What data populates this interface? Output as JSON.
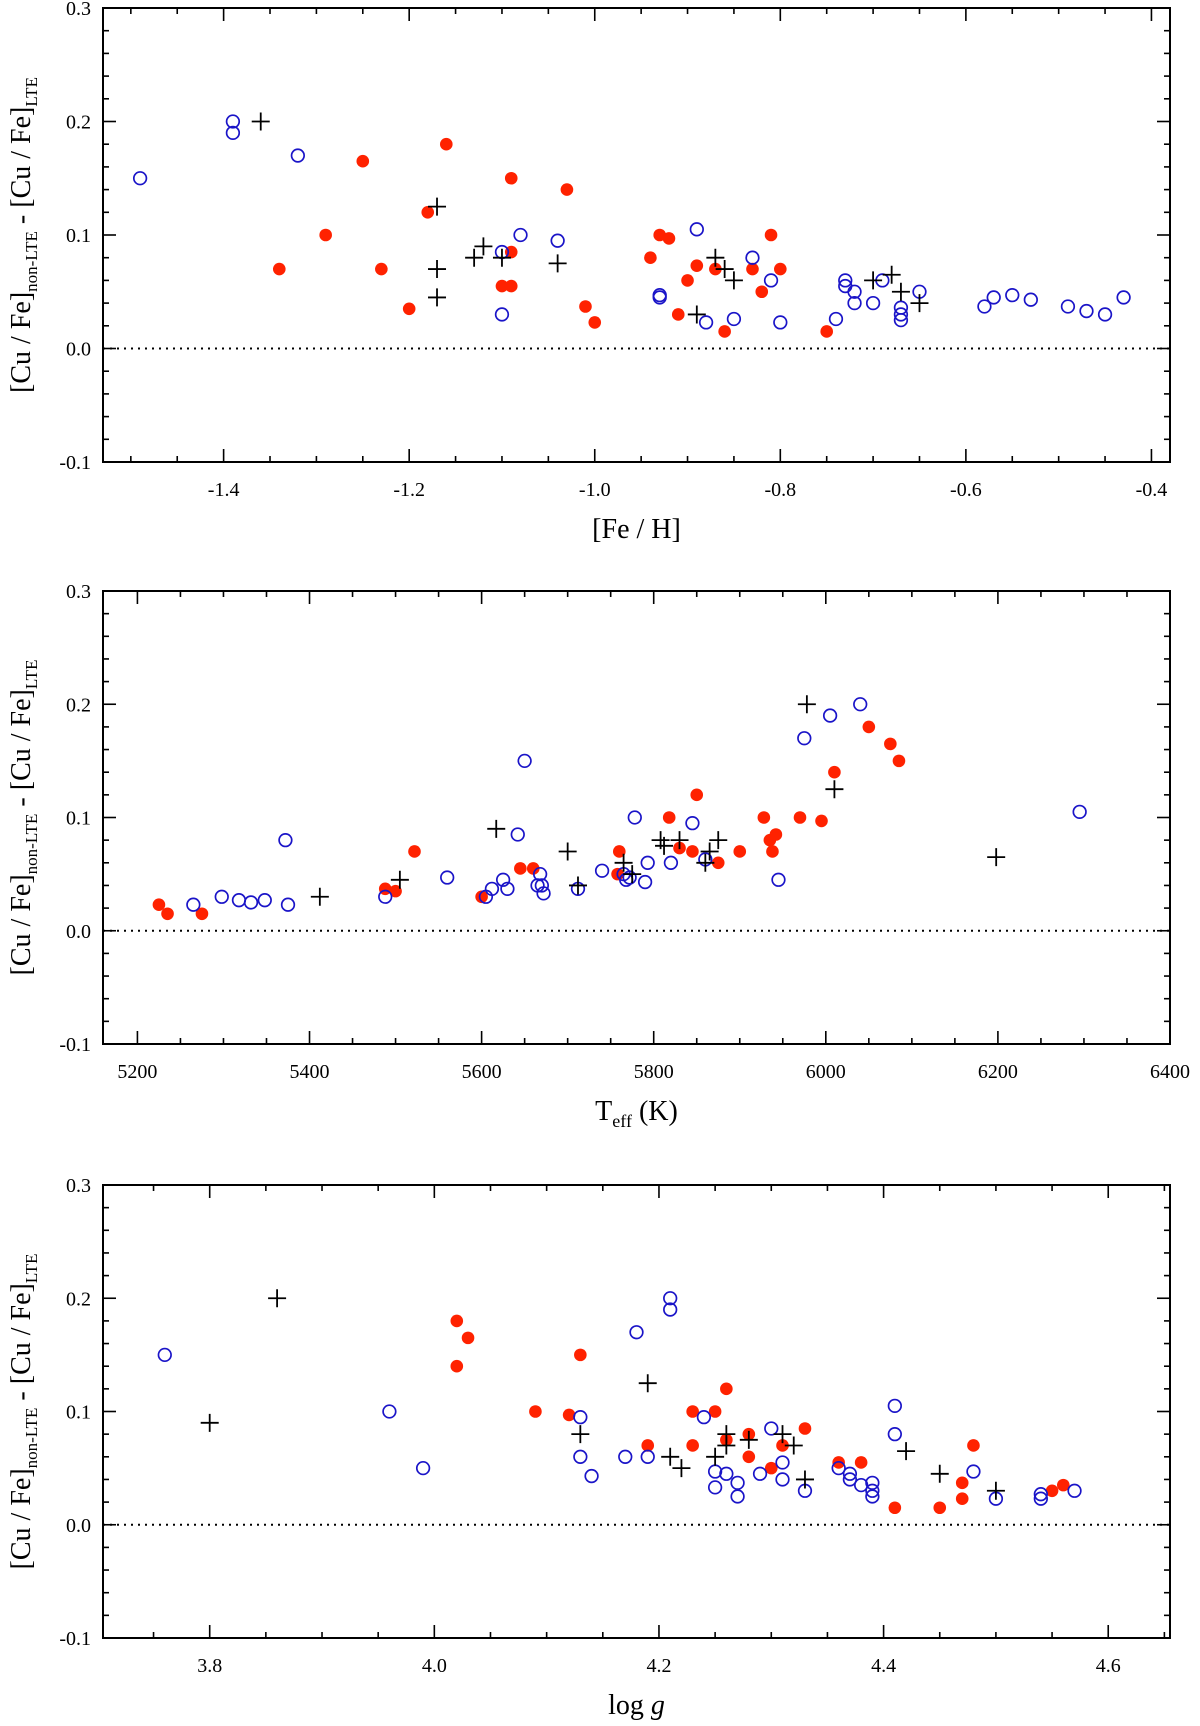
{
  "colors": {
    "filled": "#ff2200",
    "open": "#1a14c8",
    "cross": "#000000",
    "frame": "#000000"
  },
  "chart_data": [
    {
      "type": "scatter",
      "xlabel": "[Fe / H]",
      "ylabel": {
        "main1": "[Cu / Fe]",
        "sub1": "non-LTE",
        "mid": " - [Cu / Fe]",
        "sub2": "LTE"
      },
      "xlim": [
        -1.53,
        -0.38
      ],
      "ylim": [
        -0.1,
        0.3
      ],
      "xticks": [
        -1.4,
        -1.2,
        -1.0,
        -0.8,
        -0.6,
        -0.4
      ],
      "xtick_labels": [
        "-1.4",
        "-1.2",
        "-1.0",
        "-0.8",
        "-0.6",
        "-0.4"
      ],
      "xminor": 0.05,
      "yticks": [
        -0.1,
        0.0,
        0.1,
        0.2,
        0.3
      ],
      "ytick_labels": [
        "-0.1",
        "0.0",
        "0.1",
        "0.2",
        "0.3"
      ],
      "yminor": 0.02,
      "zero_line": true,
      "series": [
        {
          "marker": "filled",
          "points": [
            [
              -1.34,
              0.07
            ],
            [
              -1.29,
              0.1
            ],
            [
              -1.25,
              0.165
            ],
            [
              -1.23,
              0.07
            ],
            [
              -1.2,
              0.035
            ],
            [
              -1.18,
              0.12
            ],
            [
              -1.16,
              0.18
            ],
            [
              -1.1,
              0.055
            ],
            [
              -1.09,
              0.15
            ],
            [
              -1.09,
              0.085
            ],
            [
              -1.09,
              0.055
            ],
            [
              -1.03,
              0.14
            ],
            [
              -1.01,
              0.037
            ],
            [
              -1.0,
              0.023
            ],
            [
              -0.94,
              0.08
            ],
            [
              -0.93,
              0.1
            ],
            [
              -0.92,
              0.097
            ],
            [
              -0.91,
              0.03
            ],
            [
              -0.9,
              0.06
            ],
            [
              -0.89,
              0.073
            ],
            [
              -0.87,
              0.07
            ],
            [
              -0.86,
              0.015
            ],
            [
              -0.83,
              0.07
            ],
            [
              -0.82,
              0.05
            ],
            [
              -0.81,
              0.1
            ],
            [
              -0.8,
              0.07
            ],
            [
              -0.75,
              0.015
            ]
          ]
        },
        {
          "marker": "open",
          "points": [
            [
              -1.49,
              0.15
            ],
            [
              -1.39,
              0.2
            ],
            [
              -1.39,
              0.19
            ],
            [
              -1.32,
              0.17
            ],
            [
              -1.1,
              0.085
            ],
            [
              -1.1,
              0.03
            ],
            [
              -1.08,
              0.1
            ],
            [
              -1.04,
              0.095
            ],
            [
              -0.93,
              0.047
            ],
            [
              -0.93,
              0.045
            ],
            [
              -0.89,
              0.105
            ],
            [
              -0.88,
              0.023
            ],
            [
              -0.85,
              0.026
            ],
            [
              -0.83,
              0.08
            ],
            [
              -0.81,
              0.06
            ],
            [
              -0.8,
              0.023
            ],
            [
              -0.74,
              0.026
            ],
            [
              -0.73,
              0.06
            ],
            [
              -0.73,
              0.055
            ],
            [
              -0.72,
              0.05
            ],
            [
              -0.72,
              0.04
            ],
            [
              -0.7,
              0.04
            ],
            [
              -0.69,
              0.06
            ],
            [
              -0.67,
              0.036
            ],
            [
              -0.67,
              0.03
            ],
            [
              -0.67,
              0.025
            ],
            [
              -0.65,
              0.05
            ],
            [
              -0.58,
              0.037
            ],
            [
              -0.57,
              0.045
            ],
            [
              -0.55,
              0.047
            ],
            [
              -0.53,
              0.043
            ],
            [
              -0.49,
              0.037
            ],
            [
              -0.47,
              0.033
            ],
            [
              -0.45,
              0.03
            ],
            [
              -0.43,
              0.045
            ]
          ]
        },
        {
          "marker": "cross",
          "points": [
            [
              -1.36,
              0.2
            ],
            [
              -1.17,
              0.125
            ],
            [
              -1.17,
              0.07
            ],
            [
              -1.17,
              0.045
            ],
            [
              -1.13,
              0.08
            ],
            [
              -1.12,
              0.09
            ],
            [
              -1.1,
              0.08
            ],
            [
              -1.04,
              0.075
            ],
            [
              -0.89,
              0.03
            ],
            [
              -0.87,
              0.08
            ],
            [
              -0.86,
              0.07
            ],
            [
              -0.85,
              0.06
            ],
            [
              -0.7,
              0.06
            ],
            [
              -0.68,
              0.065
            ],
            [
              -0.67,
              0.05
            ],
            [
              -0.65,
              0.04
            ]
          ]
        }
      ]
    },
    {
      "type": "scatter",
      "xlabel": {
        "main": "T",
        "sub": "eff",
        "unit": " (K)"
      },
      "ylabel": {
        "main1": "[Cu / Fe]",
        "sub1": "non-LTE",
        "mid": " - [Cu / Fe]",
        "sub2": "LTE"
      },
      "xlim": [
        5160,
        6400
      ],
      "ylim": [
        -0.1,
        0.3
      ],
      "xticks": [
        5200,
        5400,
        5600,
        5800,
        6000,
        6200,
        6400
      ],
      "xtick_labels": [
        "5200",
        "5400",
        "5600",
        "5800",
        "6000",
        "6200",
        "6400"
      ],
      "xminor": 50,
      "yticks": [
        -0.1,
        0.0,
        0.1,
        0.2,
        0.3
      ],
      "ytick_labels": [
        "-0.1",
        "0.0",
        "0.1",
        "0.2",
        "0.3"
      ],
      "yminor": 0.02,
      "zero_line": true,
      "series": [
        {
          "marker": "filled",
          "points": [
            [
              5225,
              0.023
            ],
            [
              5235,
              0.015
            ],
            [
              5275,
              0.015
            ],
            [
              5488,
              0.037
            ],
            [
              5500,
              0.035
            ],
            [
              5522,
              0.07
            ],
            [
              5600,
              0.03
            ],
            [
              5645,
              0.055
            ],
            [
              5660,
              0.055
            ],
            [
              5758,
              0.05
            ],
            [
              5760,
              0.07
            ],
            [
              5818,
              0.1
            ],
            [
              5830,
              0.073
            ],
            [
              5845,
              0.07
            ],
            [
              5850,
              0.12
            ],
            [
              5875,
              0.06
            ],
            [
              5900,
              0.07
            ],
            [
              5928,
              0.1
            ],
            [
              5935,
              0.08
            ],
            [
              5938,
              0.07
            ],
            [
              5942,
              0.085
            ],
            [
              5970,
              0.1
            ],
            [
              5995,
              0.097
            ],
            [
              6010,
              0.14
            ],
            [
              6050,
              0.18
            ],
            [
              6075,
              0.165
            ],
            [
              6085,
              0.15
            ]
          ]
        },
        {
          "marker": "open",
          "points": [
            [
              5265,
              0.023
            ],
            [
              5298,
              0.03
            ],
            [
              5318,
              0.027
            ],
            [
              5332,
              0.025
            ],
            [
              5348,
              0.027
            ],
            [
              5372,
              0.08
            ],
            [
              5375,
              0.023
            ],
            [
              5488,
              0.03
            ],
            [
              5560,
              0.047
            ],
            [
              5605,
              0.03
            ],
            [
              5612,
              0.037
            ],
            [
              5625,
              0.045
            ],
            [
              5630,
              0.037
            ],
            [
              5642,
              0.085
            ],
            [
              5650,
              0.15
            ],
            [
              5665,
              0.04
            ],
            [
              5668,
              0.05
            ],
            [
              5670,
              0.04
            ],
            [
              5672,
              0.033
            ],
            [
              5712,
              0.037
            ],
            [
              5740,
              0.053
            ],
            [
              5765,
              0.05
            ],
            [
              5768,
              0.045
            ],
            [
              5772,
              0.047
            ],
            [
              5778,
              0.1
            ],
            [
              5790,
              0.043
            ],
            [
              5793,
              0.06
            ],
            [
              5820,
              0.06
            ],
            [
              5845,
              0.095
            ],
            [
              5860,
              0.063
            ],
            [
              5945,
              0.045
            ],
            [
              5975,
              0.17
            ],
            [
              6005,
              0.19
            ],
            [
              6040,
              0.2
            ],
            [
              6295,
              0.105
            ]
          ]
        },
        {
          "marker": "cross",
          "points": [
            [
              5412,
              0.03
            ],
            [
              5505,
              0.045
            ],
            [
              5617,
              0.09
            ],
            [
              5700,
              0.07
            ],
            [
              5712,
              0.04
            ],
            [
              5765,
              0.06
            ],
            [
              5775,
              0.05
            ],
            [
              5808,
              0.08
            ],
            [
              5812,
              0.075
            ],
            [
              5830,
              0.08
            ],
            [
              5860,
              0.06
            ],
            [
              5865,
              0.07
            ],
            [
              5875,
              0.08
            ],
            [
              5978,
              0.2
            ],
            [
              6010,
              0.125
            ],
            [
              6198,
              0.065
            ]
          ]
        }
      ]
    },
    {
      "type": "scatter",
      "xlabel": {
        "main": "log ",
        "italic": "g"
      },
      "ylabel": {
        "main1": "[Cu / Fe]",
        "sub1": "non-LTE",
        "mid": " - [Cu / Fe]",
        "sub2": "LTE"
      },
      "xlim": [
        3.705,
        4.655
      ],
      "ylim": [
        -0.1,
        0.3
      ],
      "xticks": [
        3.8,
        4.0,
        4.2,
        4.4,
        4.6
      ],
      "xtick_labels": [
        "3.8",
        "4.0",
        "4.2",
        "4.4",
        "4.6"
      ],
      "xminor": 0.05,
      "yticks": [
        -0.1,
        0.0,
        0.1,
        0.2,
        0.3
      ],
      "ytick_labels": [
        "-0.1",
        "0.0",
        "0.1",
        "0.2",
        "0.3"
      ],
      "yminor": 0.02,
      "zero_line": true,
      "series": [
        {
          "marker": "filled",
          "points": [
            [
              4.02,
              0.18
            ],
            [
              4.02,
              0.14
            ],
            [
              4.03,
              0.165
            ],
            [
              4.09,
              0.1
            ],
            [
              4.12,
              0.097
            ],
            [
              4.13,
              0.15
            ],
            [
              4.19,
              0.07
            ],
            [
              4.23,
              0.1
            ],
            [
              4.23,
              0.07
            ],
            [
              4.25,
              0.1
            ],
            [
              4.26,
              0.12
            ],
            [
              4.26,
              0.075
            ],
            [
              4.28,
              0.06
            ],
            [
              4.28,
              0.08
            ],
            [
              4.3,
              0.05
            ],
            [
              4.31,
              0.07
            ],
            [
              4.33,
              0.085
            ],
            [
              4.36,
              0.055
            ],
            [
              4.38,
              0.055
            ],
            [
              4.41,
              0.015
            ],
            [
              4.45,
              0.015
            ],
            [
              4.47,
              0.037
            ],
            [
              4.47,
              0.023
            ],
            [
              4.48,
              0.07
            ],
            [
              4.55,
              0.03
            ],
            [
              4.56,
              0.035
            ]
          ]
        },
        {
          "marker": "open",
          "points": [
            [
              3.76,
              0.15
            ],
            [
              3.96,
              0.1
            ],
            [
              3.99,
              0.05
            ],
            [
              4.13,
              0.095
            ],
            [
              4.13,
              0.06
            ],
            [
              4.14,
              0.043
            ],
            [
              4.17,
              0.06
            ],
            [
              4.18,
              0.17
            ],
            [
              4.19,
              0.06
            ],
            [
              4.21,
              0.2
            ],
            [
              4.21,
              0.19
            ],
            [
              4.24,
              0.095
            ],
            [
              4.25,
              0.047
            ],
            [
              4.25,
              0.033
            ],
            [
              4.26,
              0.045
            ],
            [
              4.27,
              0.037
            ],
            [
              4.27,
              0.025
            ],
            [
              4.29,
              0.045
            ],
            [
              4.3,
              0.085
            ],
            [
              4.31,
              0.055
            ],
            [
              4.31,
              0.04
            ],
            [
              4.33,
              0.03
            ],
            [
              4.36,
              0.05
            ],
            [
              4.37,
              0.045
            ],
            [
              4.37,
              0.04
            ],
            [
              4.38,
              0.035
            ],
            [
              4.39,
              0.037
            ],
            [
              4.39,
              0.03
            ],
            [
              4.39,
              0.025
            ],
            [
              4.41,
              0.105
            ],
            [
              4.41,
              0.08
            ],
            [
              4.48,
              0.047
            ],
            [
              4.5,
              0.023
            ],
            [
              4.54,
              0.027
            ],
            [
              4.54,
              0.023
            ],
            [
              4.57,
              0.03
            ]
          ]
        },
        {
          "marker": "cross",
          "points": [
            [
              3.8,
              0.09
            ],
            [
              3.86,
              0.2
            ],
            [
              4.13,
              0.08
            ],
            [
              4.19,
              0.125
            ],
            [
              4.21,
              0.06
            ],
            [
              4.22,
              0.05
            ],
            [
              4.25,
              0.06
            ],
            [
              4.26,
              0.08
            ],
            [
              4.26,
              0.07
            ],
            [
              4.28,
              0.075
            ],
            [
              4.31,
              0.08
            ],
            [
              4.32,
              0.07
            ],
            [
              4.33,
              0.04
            ],
            [
              4.42,
              0.065
            ],
            [
              4.45,
              0.045
            ],
            [
              4.5,
              0.03
            ]
          ]
        }
      ]
    }
  ]
}
